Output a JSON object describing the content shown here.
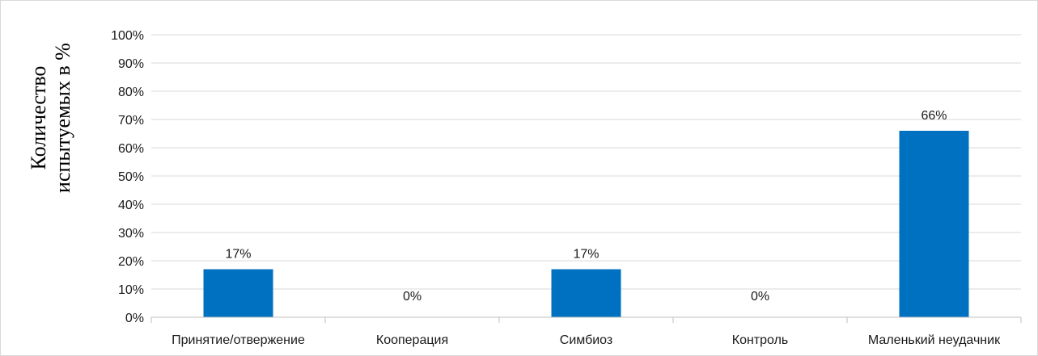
{
  "chart_data": {
    "type": "bar",
    "categories": [
      "Принятие/отвержение",
      "Кооперация",
      "Симбиоз",
      "Контроль",
      "Маленький неудачник"
    ],
    "values": [
      17,
      0,
      17,
      0,
      66
    ],
    "value_labels": [
      "17%",
      "0%",
      "17%",
      "0%",
      "66%"
    ],
    "ylabel_lines": [
      "Количество",
      "испытуемых в %"
    ],
    "ylim": [
      0,
      100
    ],
    "yticks": [
      "0%",
      "10%",
      "20%",
      "30%",
      "40%",
      "50%",
      "60%",
      "70%",
      "80%",
      "90%",
      "100%"
    ],
    "grid": true,
    "bar_color": "#0070c0",
    "grid_color": "#d9d9d9"
  }
}
